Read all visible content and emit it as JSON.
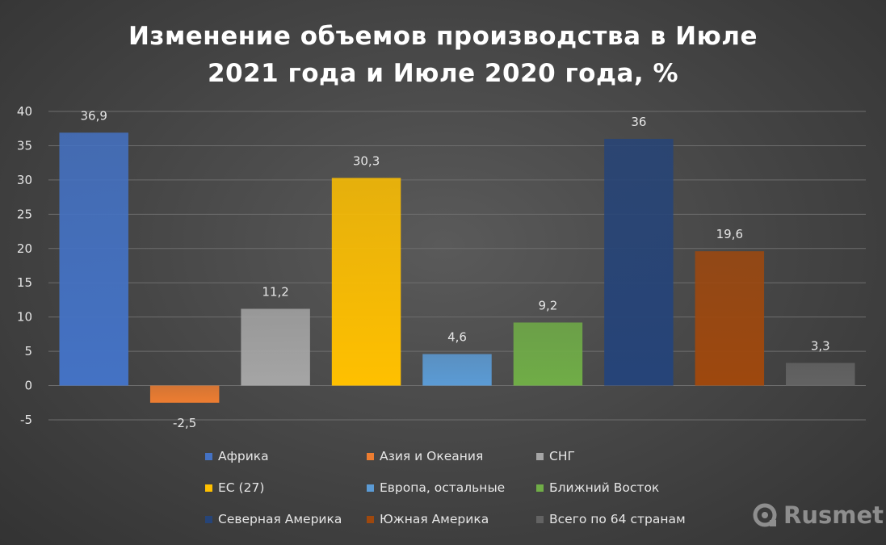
{
  "chart_data": {
    "type": "bar",
    "title": [
      "Изменение объемов производства в Июле",
      "2021 года и Июле 2020 года, %"
    ],
    "categories": [
      "Африка",
      "Азия и Океания",
      "СНГ",
      "ЕС (27)",
      "Европа, остальные",
      "Ближний Восток",
      "Северная Америка",
      "Южная Америка",
      "Всего по 64 странам"
    ],
    "values": [
      36.9,
      -2.5,
      11.2,
      30.3,
      4.6,
      9.2,
      36,
      19.6,
      3.3
    ],
    "data_labels": [
      "36,9",
      "-2,5",
      "11,2",
      "30,3",
      "4,6",
      "9,2",
      "36",
      "19,6",
      "3,3"
    ],
    "colors": [
      "#4472c4",
      "#ed7d31",
      "#a5a5a5",
      "#ffc000",
      "#5b9bd5",
      "#70ad47",
      "#264478",
      "#9e480e",
      "#636363"
    ],
    "ylim": [
      -5,
      40
    ],
    "yticks": [
      -5,
      0,
      5,
      10,
      15,
      20,
      25,
      30,
      35,
      40
    ],
    "grid": true,
    "legend_position": "bottom"
  },
  "watermark": {
    "text": "Rusmet",
    "icon": "rusmet-logo-icon"
  }
}
